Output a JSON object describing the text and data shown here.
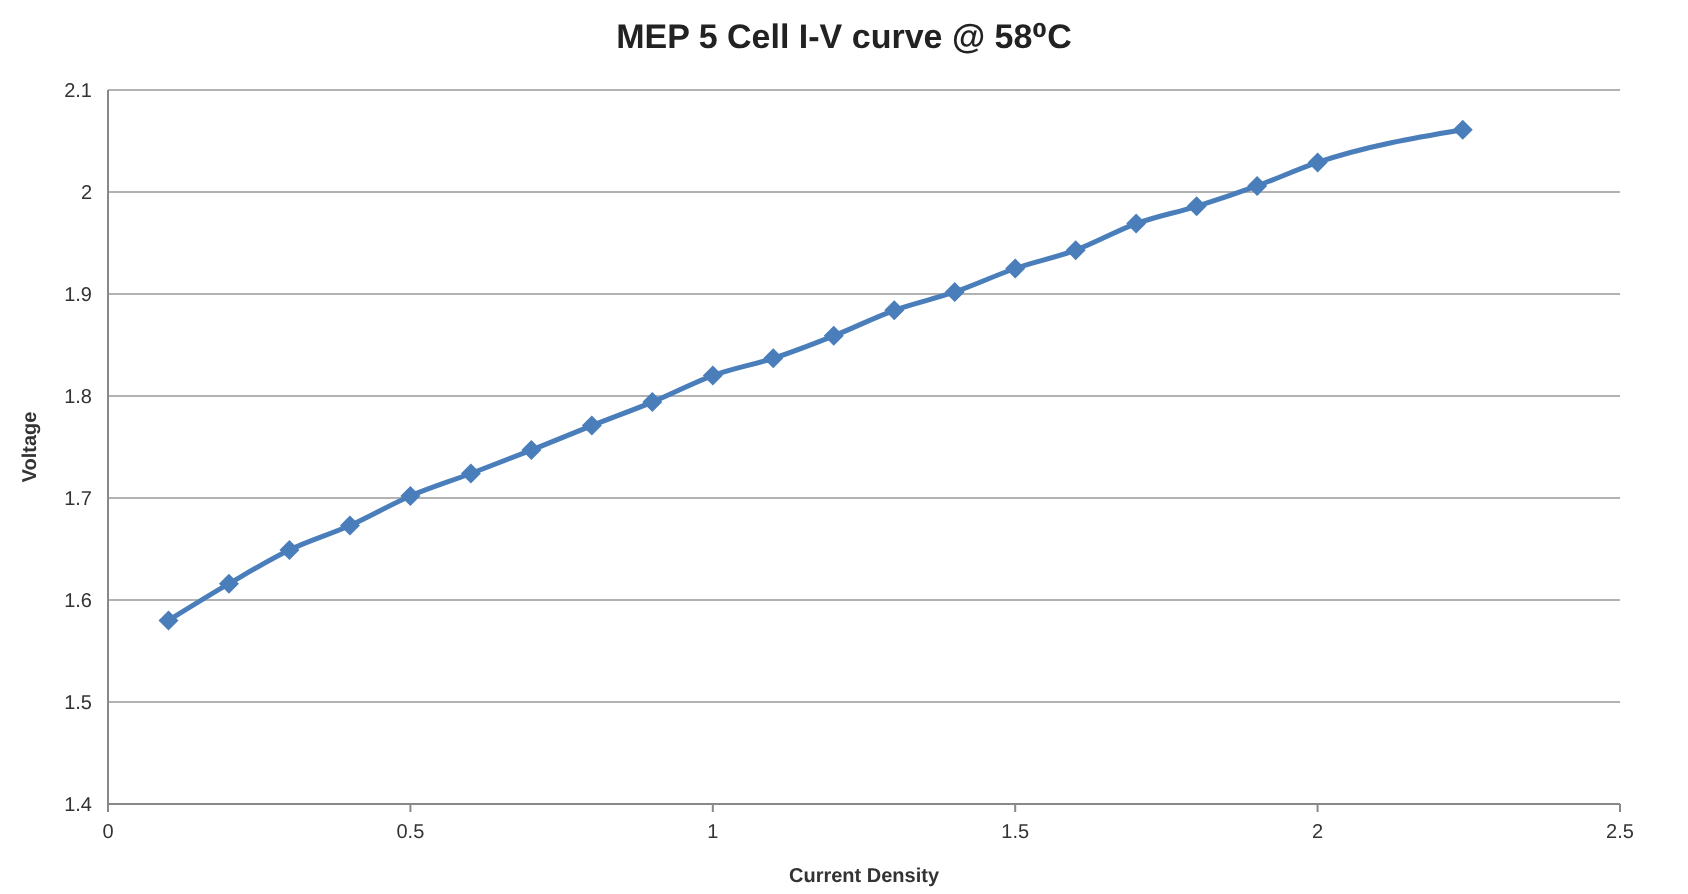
{
  "chart_data": {
    "type": "line",
    "title": "MEP 5 Cell I-V curve @ 58⁰C",
    "xlabel": "Current Density",
    "ylabel": "Voltage",
    "x": [
      0.1,
      0.2,
      0.3,
      0.4,
      0.5,
      0.6,
      0.7,
      0.8,
      0.9,
      1.0,
      1.1,
      1.2,
      1.3,
      1.4,
      1.5,
      1.6,
      1.7,
      1.8,
      1.9,
      2.0,
      2.24
    ],
    "series": [
      {
        "color": "#4a7ebb",
        "values": [
          1.58,
          1.616,
          1.649,
          1.673,
          1.702,
          1.724,
          1.747,
          1.771,
          1.794,
          1.82,
          1.837,
          1.859,
          1.884,
          1.902,
          1.925,
          1.943,
          1.969,
          1.986,
          2.006,
          2.029,
          2.061
        ]
      }
    ],
    "xlim": [
      0,
      2.5
    ],
    "xticks": [
      0,
      0.5,
      1,
      1.5,
      2,
      2.5
    ],
    "ylim": [
      1.4,
      2.1
    ],
    "yticks": [
      1.4,
      1.5,
      1.6,
      1.7,
      1.8,
      1.9,
      2,
      2.1
    ],
    "grid": "y",
    "marker": "diamond",
    "line_style": "solid"
  }
}
